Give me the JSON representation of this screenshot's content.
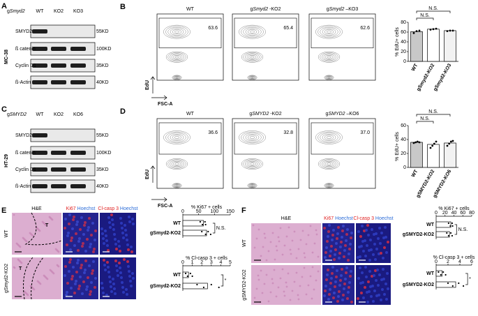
{
  "panel_A": {
    "letter": "A",
    "cell_line": "MC-38",
    "g": "g",
    "gene": "Smyd2",
    "lanes": [
      "WT",
      "KO2",
      "KO3"
    ],
    "proteins": [
      "SMYD2",
      "ß catenin",
      "Cyclin D1",
      "ß-Actin"
    ],
    "sizes": [
      "55KD",
      "100KD",
      "35KD",
      "40KD"
    ]
  },
  "panel_B": {
    "letter": "B",
    "y_axis": "EdU",
    "x_axis": "FSC-A",
    "plots": [
      {
        "title": "WT",
        "gate": "63.6"
      },
      {
        "g": "g",
        "gene": "Smyd2",
        "suffix": " -KO2",
        "gate": "65.4"
      },
      {
        "g": "g",
        "gene": "Smyd2",
        "suffix": " –KO3",
        "gate": "62.6"
      }
    ],
    "chart": {
      "type": "bar",
      "ylabel": "% EdU+ cells",
      "categories": [
        "WT",
        "gSmyd2-KO2",
        "gSmyd2-KO3"
      ],
      "values": [
        61,
        66,
        63
      ],
      "points": [
        [
          58,
          62,
          63
        ],
        [
          65,
          66,
          67
        ],
        [
          62,
          63,
          63
        ]
      ],
      "colors": [
        "#c8c8c8",
        "#ffffff",
        "#f2f2f2"
      ],
      "ylim": [
        0,
        80
      ],
      "yticks": [
        0,
        20,
        40,
        60,
        80
      ],
      "significance": [
        "N.S.",
        "N.S."
      ]
    }
  },
  "panel_C": {
    "letter": "C",
    "cell_line": "HT-29",
    "g": "g",
    "gene": "SMYD2",
    "lanes": [
      "WT",
      "KO2",
      "KO6"
    ],
    "proteins": [
      "SMYD2",
      "ß catenin",
      "Cyclin D1",
      "ß-Actin"
    ],
    "sizes": [
      "55KD",
      "100KD",
      "35KD",
      "40KD"
    ]
  },
  "panel_D": {
    "letter": "D",
    "y_axis": "EdU",
    "x_axis": "FSC-A",
    "plots": [
      {
        "title": "WT",
        "gate": "36.6"
      },
      {
        "g": "g",
        "gene": "SMYD2",
        "suffix": " -KO2",
        "gate": "32.8"
      },
      {
        "g": "g",
        "gene": "SMYD2",
        "suffix": " –KO6",
        "gate": "37.0"
      }
    ],
    "chart": {
      "type": "bar",
      "ylabel": "% EdU+ cells",
      "categories": [
        "WT",
        "gSMYD2-KO2",
        "gSMYD2-KO6"
      ],
      "values": [
        36,
        33,
        35
      ],
      "points": [
        [
          35,
          36,
          37,
          36
        ],
        [
          28,
          31,
          34,
          37
        ],
        [
          31,
          34,
          37,
          38
        ]
      ],
      "colors": [
        "#c8c8c8",
        "#ffffff",
        "#f2f2f2"
      ],
      "ylim": [
        0,
        60
      ],
      "yticks": [
        0,
        20,
        40,
        60
      ],
      "significance": [
        "N.S.",
        "N.S."
      ]
    }
  },
  "panel_E": {
    "letter": "E",
    "headers": [
      {
        "stain": "H&E"
      },
      {
        "stain": "Ki67",
        "counter": "Hoechst"
      },
      {
        "stain": "Cl-casp 3",
        "counter": "Hoechst"
      }
    ],
    "rows": [
      "WT",
      "gSmyd2-KO2"
    ],
    "tumor_marks": [
      "T",
      "T"
    ],
    "charts": [
      {
        "type": "hbar",
        "title": "% Ki67 + cells",
        "categories": [
          "WT",
          "gSmyd2-KO2"
        ],
        "values": [
          65,
          75
        ],
        "points": [
          [
            55,
            62,
            70,
            72
          ],
          [
            60,
            72,
            80,
            88
          ]
        ],
        "xlim": [
          0,
          150
        ],
        "xticks": [
          0,
          50,
          100,
          150
        ],
        "significance": "N.S."
      },
      {
        "type": "hbar",
        "title": "% Cl-casp 3 + cells",
        "categories": [
          "WT",
          "gSmyd2-KO2"
        ],
        "values": [
          0.6,
          2.6
        ],
        "points": [
          [
            0.3,
            0.5,
            0.8,
            1.0
          ],
          [
            1.5,
            2.2,
            3.0,
            3.8
          ]
        ],
        "xlim": [
          0,
          5
        ],
        "xticks": [
          0,
          1,
          2,
          3,
          4,
          5
        ],
        "significance": "*"
      }
    ]
  },
  "panel_F": {
    "letter": "F",
    "headers": [
      {
        "stain": "H&E"
      },
      {
        "stain": "Ki67",
        "counter": "Hoechst"
      },
      {
        "stain": "Cl-casp 3",
        "counter": "Hoechst"
      }
    ],
    "rows": [
      "WT",
      "gSMYD2-KO2"
    ],
    "charts": [
      {
        "type": "hbar",
        "title": "% Ki67 + cells",
        "categories": [
          "WT",
          "gSMYD2-KO2"
        ],
        "values": [
          33,
          30
        ],
        "points": [
          [
            28,
            32,
            36,
            37
          ],
          [
            24,
            28,
            33,
            36
          ]
        ],
        "xlim": [
          0,
          80
        ],
        "xticks": [
          0,
          20,
          40,
          60,
          80
        ],
        "significance": "N.S."
      },
      {
        "type": "hbar",
        "title": "% Cl-casp 3 + cells",
        "categories": [
          "WT",
          "gSMYD2-KO2"
        ],
        "values": [
          1,
          3.3
        ],
        "points": [
          [
            0.4,
            0.8,
            1.2,
            1.6
          ],
          [
            2.0,
            2.8,
            3.8,
            4.6
          ]
        ],
        "xlim": [
          0,
          6
        ],
        "xticks": [
          0,
          2,
          4,
          6
        ],
        "significance": "*"
      }
    ]
  }
}
